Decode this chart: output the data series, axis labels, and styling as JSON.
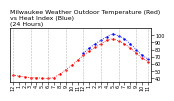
{
  "title": "Milwaukee Weather Outdoor Temperature (Red)\nvs Heat Index (Blue)\n(24 Hours)",
  "red_x": [
    0,
    1,
    2,
    3,
    4,
    5,
    6,
    7,
    8,
    9,
    10,
    11,
    12,
    13,
    14,
    15,
    16,
    17,
    18,
    19,
    20,
    21,
    22,
    23
  ],
  "red_y": [
    45,
    43,
    42,
    41,
    41,
    40,
    40,
    41,
    46,
    52,
    58,
    65,
    72,
    78,
    83,
    88,
    93,
    95,
    92,
    88,
    82,
    75,
    68,
    63
  ],
  "blue_x": [
    12,
    13,
    14,
    15,
    16,
    17,
    18,
    19,
    20,
    21,
    22,
    23
  ],
  "blue_y": [
    75,
    82,
    88,
    93,
    98,
    102,
    99,
    95,
    88,
    80,
    72,
    67
  ],
  "ylim": [
    35,
    110
  ],
  "xlim": [
    0,
    23
  ],
  "yticks": [
    40,
    50,
    60,
    70,
    80,
    90,
    100
  ],
  "xtick_labels": [
    "12",
    "1",
    "2",
    "3",
    "4",
    "5",
    "6",
    "7",
    "8",
    "9",
    "10",
    "11",
    "12",
    "1",
    "2",
    "3",
    "4",
    "5",
    "6",
    "7",
    "8",
    "9",
    "10",
    "11"
  ],
  "grid_color": "#aaaaaa",
  "background": "#ffffff",
  "red_color": "#ff0000",
  "blue_color": "#0000ff",
  "title_fontsize": 4.5,
  "tick_fontsize": 3.5,
  "line_width": 0.6,
  "marker_size": 1.5,
  "grid_positions": [
    0,
    3,
    6,
    9,
    12,
    15,
    18,
    21,
    23
  ]
}
